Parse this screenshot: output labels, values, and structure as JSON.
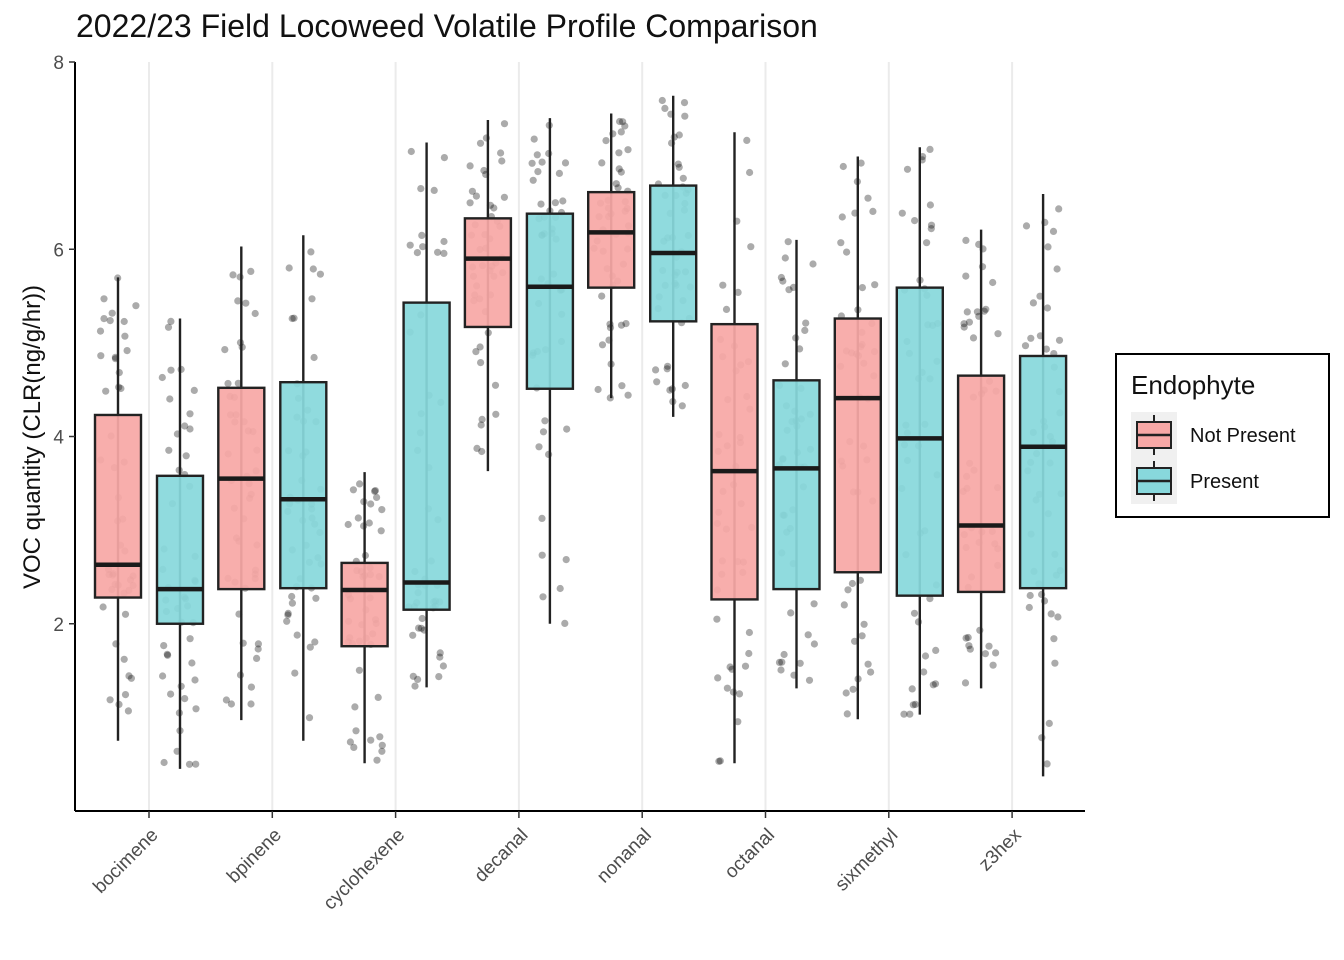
{
  "chart_data": {
    "type": "boxplot",
    "title": "2022/23 Field Locoweed Volatile Profile Comparison",
    "ylabel": "VOC quantity (CLR(ng/g/hr))",
    "xlabel": "",
    "ylim": [
      0,
      8
    ],
    "yticks": [
      2,
      4,
      6,
      8
    ],
    "grid": "vertical major lines",
    "legend": {
      "title": "Endophyte",
      "position": "right"
    },
    "categories": [
      "bocimene",
      "bpinene",
      "cyclohexene",
      "decanal",
      "nonanal",
      "octanal",
      "sixmethyl",
      "z3hex"
    ],
    "series": [
      {
        "name": "Not Present",
        "color": "#F8A8A6",
        "boxes": [
          {
            "min": 0.75,
            "q1": 2.28,
            "median": 2.63,
            "q3": 4.23,
            "max": 5.7
          },
          {
            "min": 0.97,
            "q1": 2.37,
            "median": 3.55,
            "q3": 4.52,
            "max": 6.03
          },
          {
            "min": 0.51,
            "q1": 1.76,
            "median": 2.36,
            "q3": 2.65,
            "max": 3.62
          },
          {
            "min": 3.63,
            "q1": 5.17,
            "median": 5.9,
            "q3": 6.33,
            "max": 7.38
          },
          {
            "min": 4.41,
            "q1": 5.59,
            "median": 6.18,
            "q3": 6.61,
            "max": 7.45
          },
          {
            "min": 0.51,
            "q1": 2.26,
            "median": 3.63,
            "q3": 5.2,
            "max": 7.25
          },
          {
            "min": 0.98,
            "q1": 2.55,
            "median": 4.41,
            "q3": 5.26,
            "max": 6.99
          },
          {
            "min": 1.31,
            "q1": 2.34,
            "median": 3.05,
            "q3": 4.65,
            "max": 6.21
          }
        ]
      },
      {
        "name": "Present",
        "color": "#88D8DC",
        "boxes": [
          {
            "min": 0.45,
            "q1": 2.0,
            "median": 2.37,
            "q3": 3.58,
            "max": 5.26
          },
          {
            "min": 0.75,
            "q1": 2.38,
            "median": 3.33,
            "q3": 4.58,
            "max": 6.15
          },
          {
            "min": 1.32,
            "q1": 2.15,
            "median": 2.44,
            "q3": 5.43,
            "max": 7.14
          },
          {
            "min": 2.0,
            "q1": 4.51,
            "median": 5.6,
            "q3": 6.38,
            "max": 7.4
          },
          {
            "min": 4.21,
            "q1": 5.23,
            "median": 5.96,
            "q3": 6.68,
            "max": 7.64
          },
          {
            "min": 1.31,
            "q1": 2.37,
            "median": 3.66,
            "q3": 4.6,
            "max": 6.1
          },
          {
            "min": 1.03,
            "q1": 2.3,
            "median": 3.98,
            "q3": 5.59,
            "max": 7.09
          },
          {
            "min": 0.37,
            "q1": 2.38,
            "median": 3.89,
            "q3": 4.86,
            "max": 6.59
          }
        ]
      }
    ]
  }
}
